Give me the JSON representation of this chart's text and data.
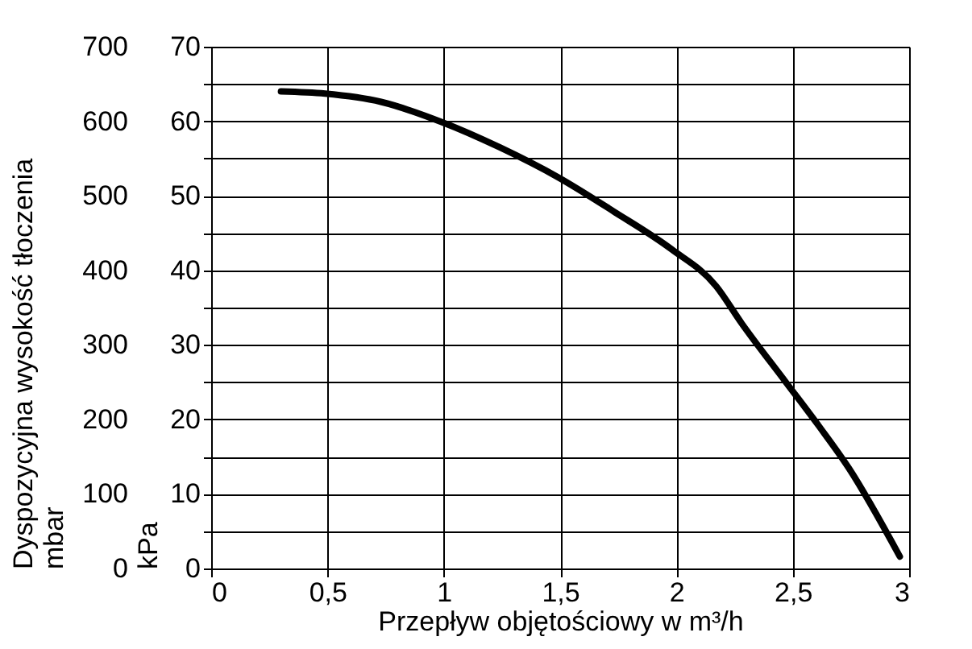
{
  "chart_data": {
    "type": "line",
    "xlabel": "Przepływ objętościowy w m³/h",
    "ylabel": "Dyspozycyjna wysokość tłoczenia\nmbar",
    "y2label": "kPa",
    "x": [
      0.3,
      0.49,
      0.73,
      0.99,
      1.24,
      1.49,
      1.73,
      1.98,
      2.17,
      2.28,
      2.47,
      2.61,
      2.74,
      2.96
    ],
    "series": [
      {
        "color": "#000000",
        "values": [
          640,
          637,
          626,
          599,
          565,
          525,
          479,
          428,
          379,
          329,
          250,
          192,
          135,
          16
        ]
      }
    ],
    "xlim": [
      0,
      3
    ],
    "xticks": [
      0,
      {
        "value": 0.5,
        "label": "0,5"
      },
      1,
      {
        "value": 1.5,
        "label": "1,5"
      },
      2,
      {
        "value": 2.5,
        "label": "2,5"
      },
      3
    ],
    "ylim": [
      0,
      700
    ],
    "yticks": [
      0,
      {
        "value": 50,
        "label": null
      },
      100,
      {
        "value": 150,
        "label": null
      },
      200,
      {
        "value": 250,
        "label": null
      },
      300,
      {
        "value": 350,
        "label": null
      },
      400,
      {
        "value": 450,
        "label": null
      },
      500,
      {
        "value": 550,
        "label": null
      },
      600,
      {
        "value": 650,
        "label": null
      },
      700
    ],
    "y2lim": [
      0,
      70
    ],
    "y2ticks": [
      0,
      {
        "value": 5,
        "label": null
      },
      10,
      {
        "value": 15,
        "label": null
      },
      20,
      {
        "value": 25,
        "label": null
      },
      30,
      {
        "value": 35,
        "label": null
      },
      40,
      {
        "value": 45,
        "label": null
      },
      50,
      {
        "value": 55,
        "label": null
      },
      60,
      {
        "value": 65,
        "label": null
      },
      70
    ],
    "grid": true,
    "line_style": "solid",
    "marker": "none"
  }
}
